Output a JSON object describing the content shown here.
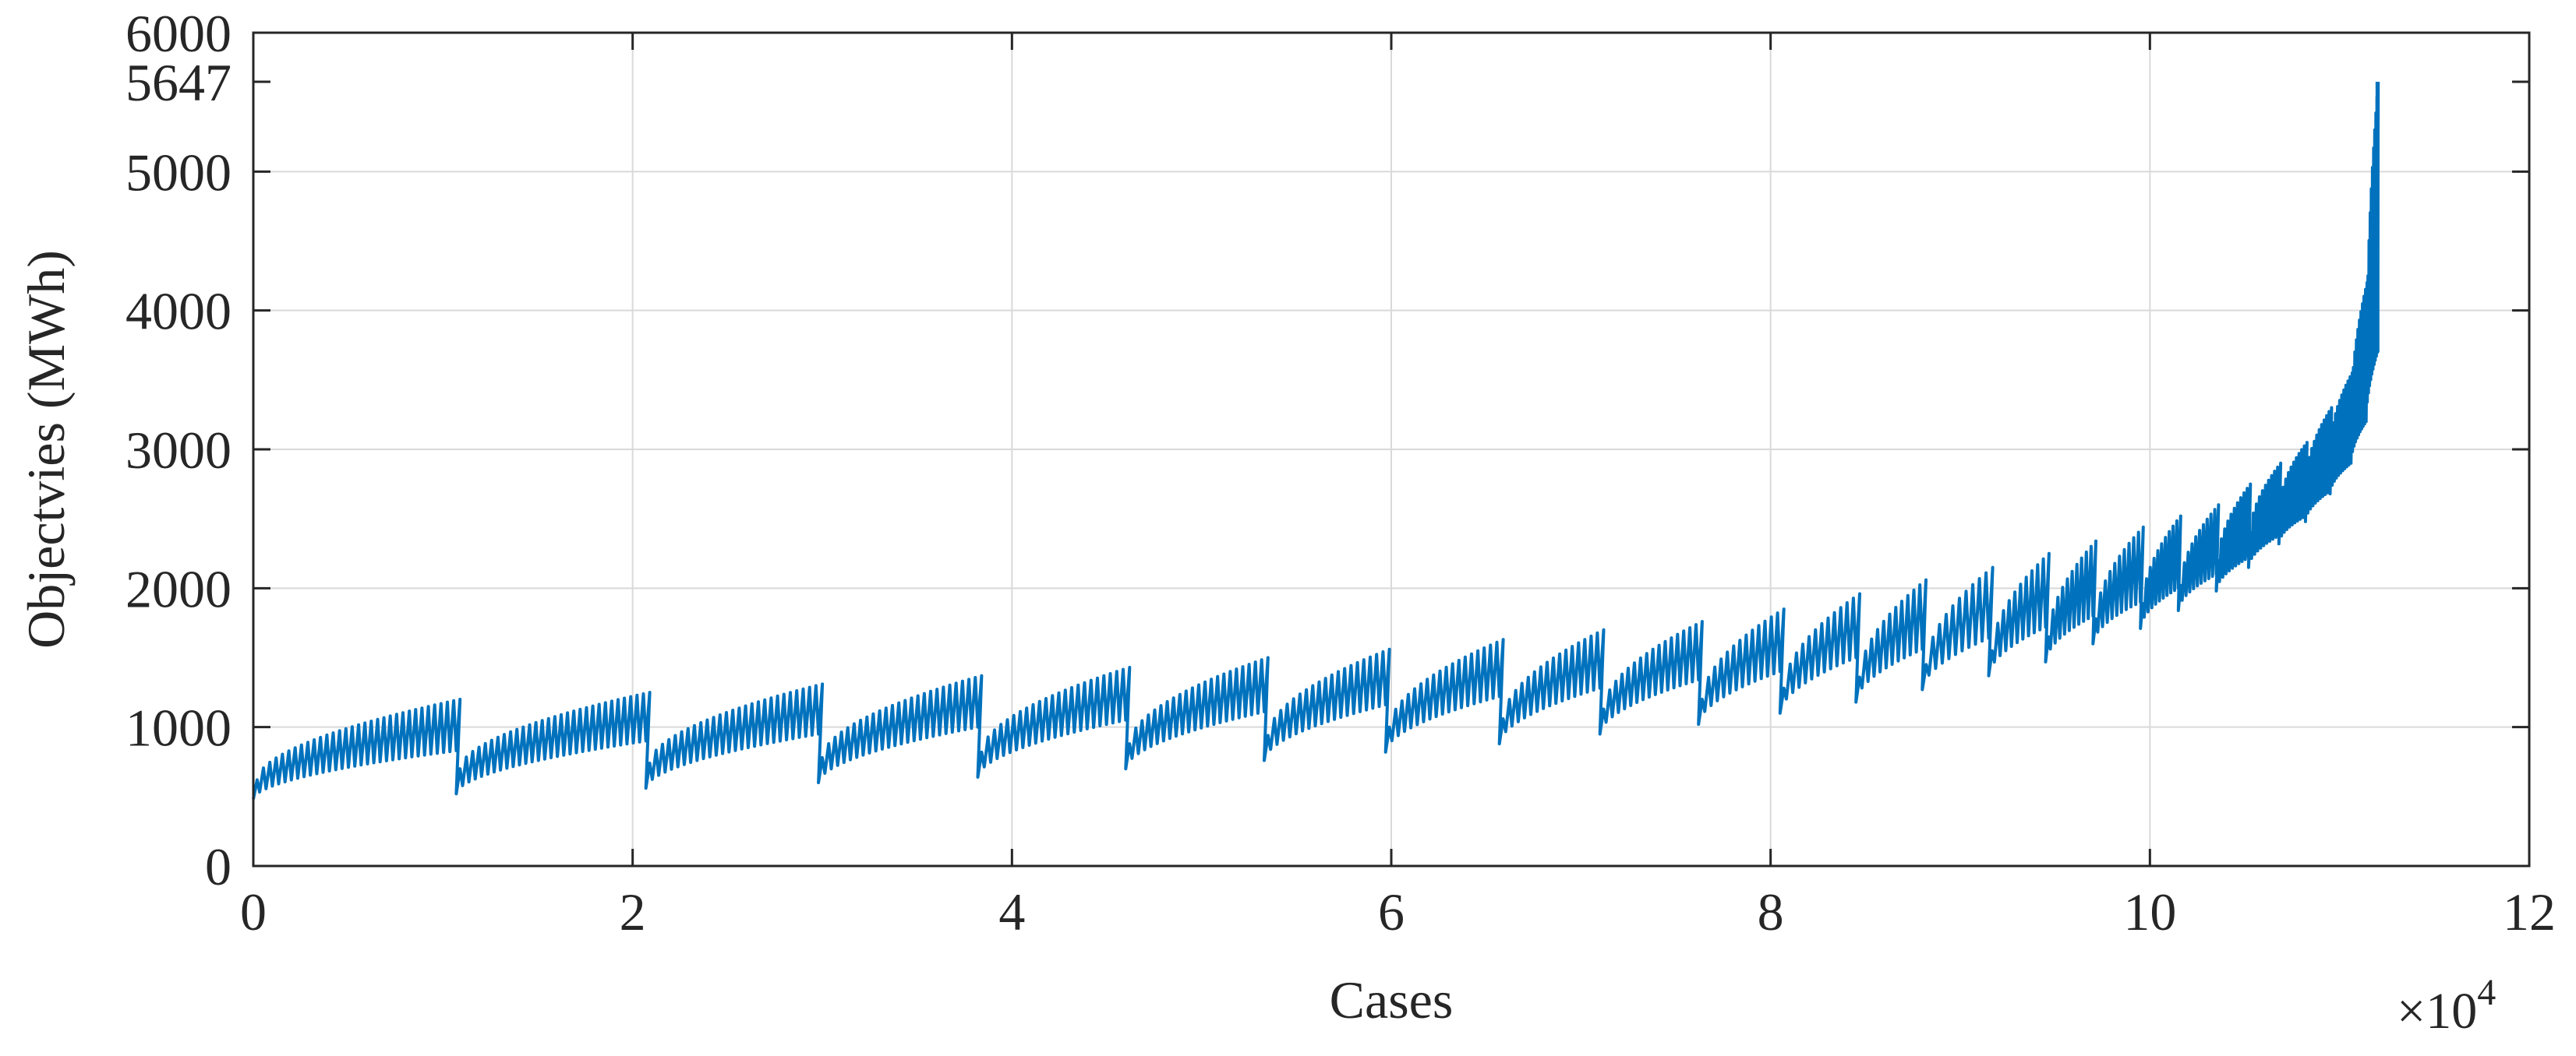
{
  "chart_data": {
    "type": "line",
    "title": "",
    "xlabel": "Cases",
    "ylabel": "Objectvies (MWh)",
    "x_exponent_label": "×10",
    "x_exponent_power": "4",
    "xlim": [
      0,
      12
    ],
    "ylim": [
      0,
      6000
    ],
    "grid": true,
    "legend": "none",
    "line_color": "#0072BD",
    "x_ticks": [
      0,
      2,
      4,
      6,
      8,
      10,
      12
    ],
    "x_tick_labels": [
      "0",
      "2",
      "4",
      "6",
      "8",
      "10",
      "12"
    ],
    "y_ticks": [
      0,
      1000,
      2000,
      3000,
      4000,
      5000,
      5647,
      6000
    ],
    "y_tick_labels": [
      "0",
      "1000",
      "2000",
      "3000",
      "4000",
      "5000",
      "5647",
      "6000"
    ],
    "x_max_case": 11.2,
    "y_peak": 5647,
    "segments": [
      {
        "x_start": 0.0,
        "x_end": 1.07,
        "low": [
          480,
          830
        ],
        "high": [
          620,
          1200
        ]
      },
      {
        "x_start": 1.07,
        "x_end": 2.07,
        "low": [
          520,
          900
        ],
        "high": [
          700,
          1250
        ]
      },
      {
        "x_start": 2.07,
        "x_end": 2.98,
        "low": [
          560,
          950
        ],
        "high": [
          740,
          1310
        ]
      },
      {
        "x_start": 2.98,
        "x_end": 3.82,
        "low": [
          600,
          1000
        ],
        "high": [
          780,
          1370
        ]
      },
      {
        "x_start": 3.82,
        "x_end": 4.6,
        "low": [
          640,
          1050
        ],
        "high": [
          820,
          1430
        ]
      },
      {
        "x_start": 4.6,
        "x_end": 5.33,
        "low": [
          700,
          1110
        ],
        "high": [
          880,
          1500
        ]
      },
      {
        "x_start": 5.33,
        "x_end": 5.97,
        "low": [
          760,
          1160
        ],
        "high": [
          940,
          1560
        ]
      },
      {
        "x_start": 5.97,
        "x_end": 6.57,
        "low": [
          820,
          1220
        ],
        "high": [
          1000,
          1630
        ]
      },
      {
        "x_start": 6.57,
        "x_end": 7.1,
        "low": [
          880,
          1280
        ],
        "high": [
          1060,
          1700
        ]
      },
      {
        "x_start": 7.1,
        "x_end": 7.62,
        "low": [
          950,
          1340
        ],
        "high": [
          1130,
          1760
        ]
      },
      {
        "x_start": 7.62,
        "x_end": 8.05,
        "low": [
          1020,
          1400
        ],
        "high": [
          1200,
          1850
        ]
      },
      {
        "x_start": 8.05,
        "x_end": 8.45,
        "low": [
          1100,
          1500
        ],
        "high": [
          1280,
          1960
        ]
      },
      {
        "x_start": 8.45,
        "x_end": 8.8,
        "low": [
          1180,
          1560
        ],
        "high": [
          1360,
          2060
        ]
      },
      {
        "x_start": 8.8,
        "x_end": 9.15,
        "low": [
          1270,
          1640
        ],
        "high": [
          1450,
          2150
        ]
      },
      {
        "x_start": 9.15,
        "x_end": 9.45,
        "low": [
          1370,
          1720
        ],
        "high": [
          1550,
          2250
        ]
      },
      {
        "x_start": 9.45,
        "x_end": 9.7,
        "low": [
          1470,
          1800
        ],
        "high": [
          1650,
          2340
        ]
      },
      {
        "x_start": 9.7,
        "x_end": 9.95,
        "low": [
          1600,
          1900
        ],
        "high": [
          1780,
          2440
        ]
      },
      {
        "x_start": 9.95,
        "x_end": 10.15,
        "low": [
          1710,
          2000
        ],
        "high": [
          1890,
          2520
        ]
      },
      {
        "x_start": 10.15,
        "x_end": 10.35,
        "low": [
          1840,
          2100
        ],
        "high": [
          2020,
          2600
        ]
      },
      {
        "x_start": 10.35,
        "x_end": 10.52,
        "low": [
          1980,
          2220
        ],
        "high": [
          2200,
          2750
        ]
      },
      {
        "x_start": 10.52,
        "x_end": 10.68,
        "low": [
          2150,
          2380
        ],
        "high": [
          2400,
          2900
        ]
      },
      {
        "x_start": 10.68,
        "x_end": 10.82,
        "low": [
          2320,
          2520
        ],
        "high": [
          2600,
          3050
        ]
      },
      {
        "x_start": 10.82,
        "x_end": 10.95,
        "low": [
          2480,
          2700
        ],
        "high": [
          2800,
          3300
        ]
      },
      {
        "x_start": 10.95,
        "x_end": 11.06,
        "low": [
          2680,
          2900
        ],
        "high": [
          3050,
          3550
        ]
      },
      {
        "x_start": 11.06,
        "x_end": 11.14,
        "low": [
          2900,
          3200
        ],
        "high": [
          3350,
          4200
        ]
      },
      {
        "x_start": 11.14,
        "x_end": 11.2,
        "low": [
          3200,
          3700
        ],
        "high": [
          3700,
          5647
        ]
      }
    ]
  }
}
